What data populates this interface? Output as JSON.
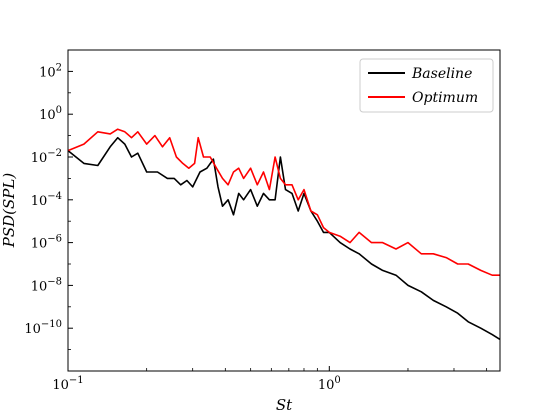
{
  "chart_data": {
    "type": "line",
    "title": "",
    "xlabel": "St",
    "ylabel": "PSD(SPL)",
    "xscale": "log",
    "yscale": "log",
    "xlim": [
      0.1,
      4.5
    ],
    "ylim": [
      1e-12,
      1000.0
    ],
    "xticks": [
      0.1,
      1.0
    ],
    "xtick_labels": [
      "10^-1",
      "10^0"
    ],
    "yticks": [
      1e-10,
      1e-08,
      1e-06,
      0.0001,
      0.01,
      1,
      100.0
    ],
    "ytick_labels": [
      "10^-10",
      "10^-8",
      "10^-6",
      "10^-4",
      "10^-2",
      "10^0",
      "10^2"
    ],
    "grid": false,
    "legend_position": "upper right",
    "series": [
      {
        "name": "Baseline",
        "color": "#000000",
        "x": [
          0.1,
          0.115,
          0.13,
          0.145,
          0.155,
          0.165,
          0.175,
          0.185,
          0.2,
          0.22,
          0.24,
          0.255,
          0.27,
          0.285,
          0.3,
          0.32,
          0.34,
          0.36,
          0.375,
          0.39,
          0.41,
          0.43,
          0.45,
          0.47,
          0.5,
          0.53,
          0.56,
          0.59,
          0.62,
          0.65,
          0.68,
          0.72,
          0.76,
          0.8,
          0.85,
          0.9,
          0.95,
          1.0,
          1.1,
          1.2,
          1.3,
          1.45,
          1.6,
          1.8,
          2.0,
          2.25,
          2.5,
          2.8,
          3.1,
          3.4,
          3.8,
          4.2,
          4.5
        ],
        "y": [
          0.02,
          0.005,
          0.004,
          0.03,
          0.08,
          0.04,
          0.01,
          0.015,
          0.002,
          0.002,
          0.001,
          0.001,
          0.0005,
          0.0008,
          0.0004,
          0.002,
          0.003,
          0.008,
          0.0004,
          5e-05,
          0.0001,
          2e-05,
          0.0002,
          0.0001,
          0.0003,
          5e-05,
          0.0002,
          0.0001,
          0.0001,
          0.01,
          0.0003,
          0.0002,
          3e-05,
          0.0002,
          3e-05,
          1e-05,
          3e-06,
          3e-06,
          1e-06,
          5e-07,
          3e-07,
          1e-07,
          5e-08,
          3e-08,
          1e-08,
          5e-09,
          2e-09,
          1e-09,
          5e-10,
          2e-10,
          1e-10,
          5e-11,
          3e-11
        ]
      },
      {
        "name": "Optimum",
        "color": "#ff0000",
        "x": [
          0.1,
          0.115,
          0.13,
          0.145,
          0.155,
          0.165,
          0.175,
          0.185,
          0.2,
          0.215,
          0.23,
          0.245,
          0.26,
          0.275,
          0.29,
          0.305,
          0.315,
          0.33,
          0.35,
          0.37,
          0.39,
          0.41,
          0.43,
          0.45,
          0.47,
          0.5,
          0.53,
          0.56,
          0.59,
          0.62,
          0.65,
          0.68,
          0.72,
          0.76,
          0.8,
          0.85,
          0.9,
          0.95,
          1.0,
          1.1,
          1.2,
          1.3,
          1.45,
          1.6,
          1.8,
          2.0,
          2.25,
          2.5,
          2.8,
          3.1,
          3.4,
          3.8,
          4.2,
          4.5
        ],
        "y": [
          0.02,
          0.04,
          0.15,
          0.12,
          0.2,
          0.15,
          0.08,
          0.15,
          0.04,
          0.1,
          0.03,
          0.08,
          0.01,
          0.005,
          0.003,
          0.005,
          0.08,
          0.01,
          0.01,
          0.003,
          0.001,
          0.0005,
          0.002,
          0.003,
          0.001,
          0.003,
          0.0005,
          0.002,
          0.0003,
          0.01,
          0.001,
          0.0005,
          0.0005,
          0.0001,
          0.0003,
          3e-05,
          2e-05,
          5e-06,
          3e-06,
          2e-06,
          1e-06,
          3e-06,
          1e-06,
          1e-06,
          5e-07,
          1e-06,
          3e-07,
          3e-07,
          2e-07,
          1e-07,
          1e-07,
          5e-08,
          3e-08,
          3e-08
        ]
      }
    ]
  }
}
